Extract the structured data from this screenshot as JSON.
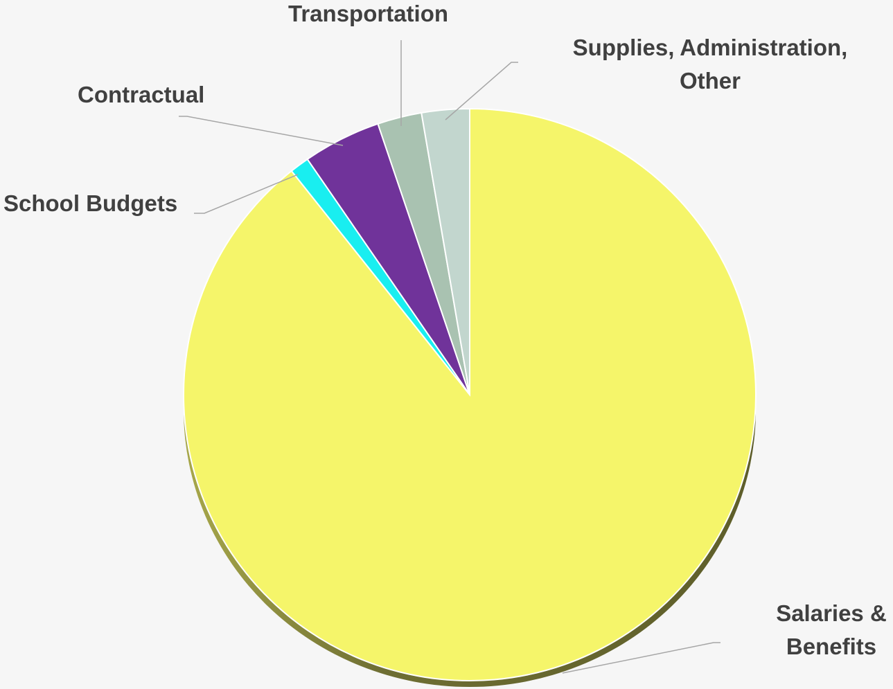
{
  "chart_data": {
    "type": "pie",
    "categories": [
      "Salaries & Benefits",
      "School Budgets",
      "Contractual",
      "Transportation",
      "Supplies, Administration, Other"
    ],
    "values": [
      89.3,
      1.1,
      4.4,
      2.5,
      2.7
    ],
    "colors": [
      "#f5f56a",
      "#19eef0",
      "#70339a",
      "#a9c2b1",
      "#c2d6ce"
    ]
  }
}
